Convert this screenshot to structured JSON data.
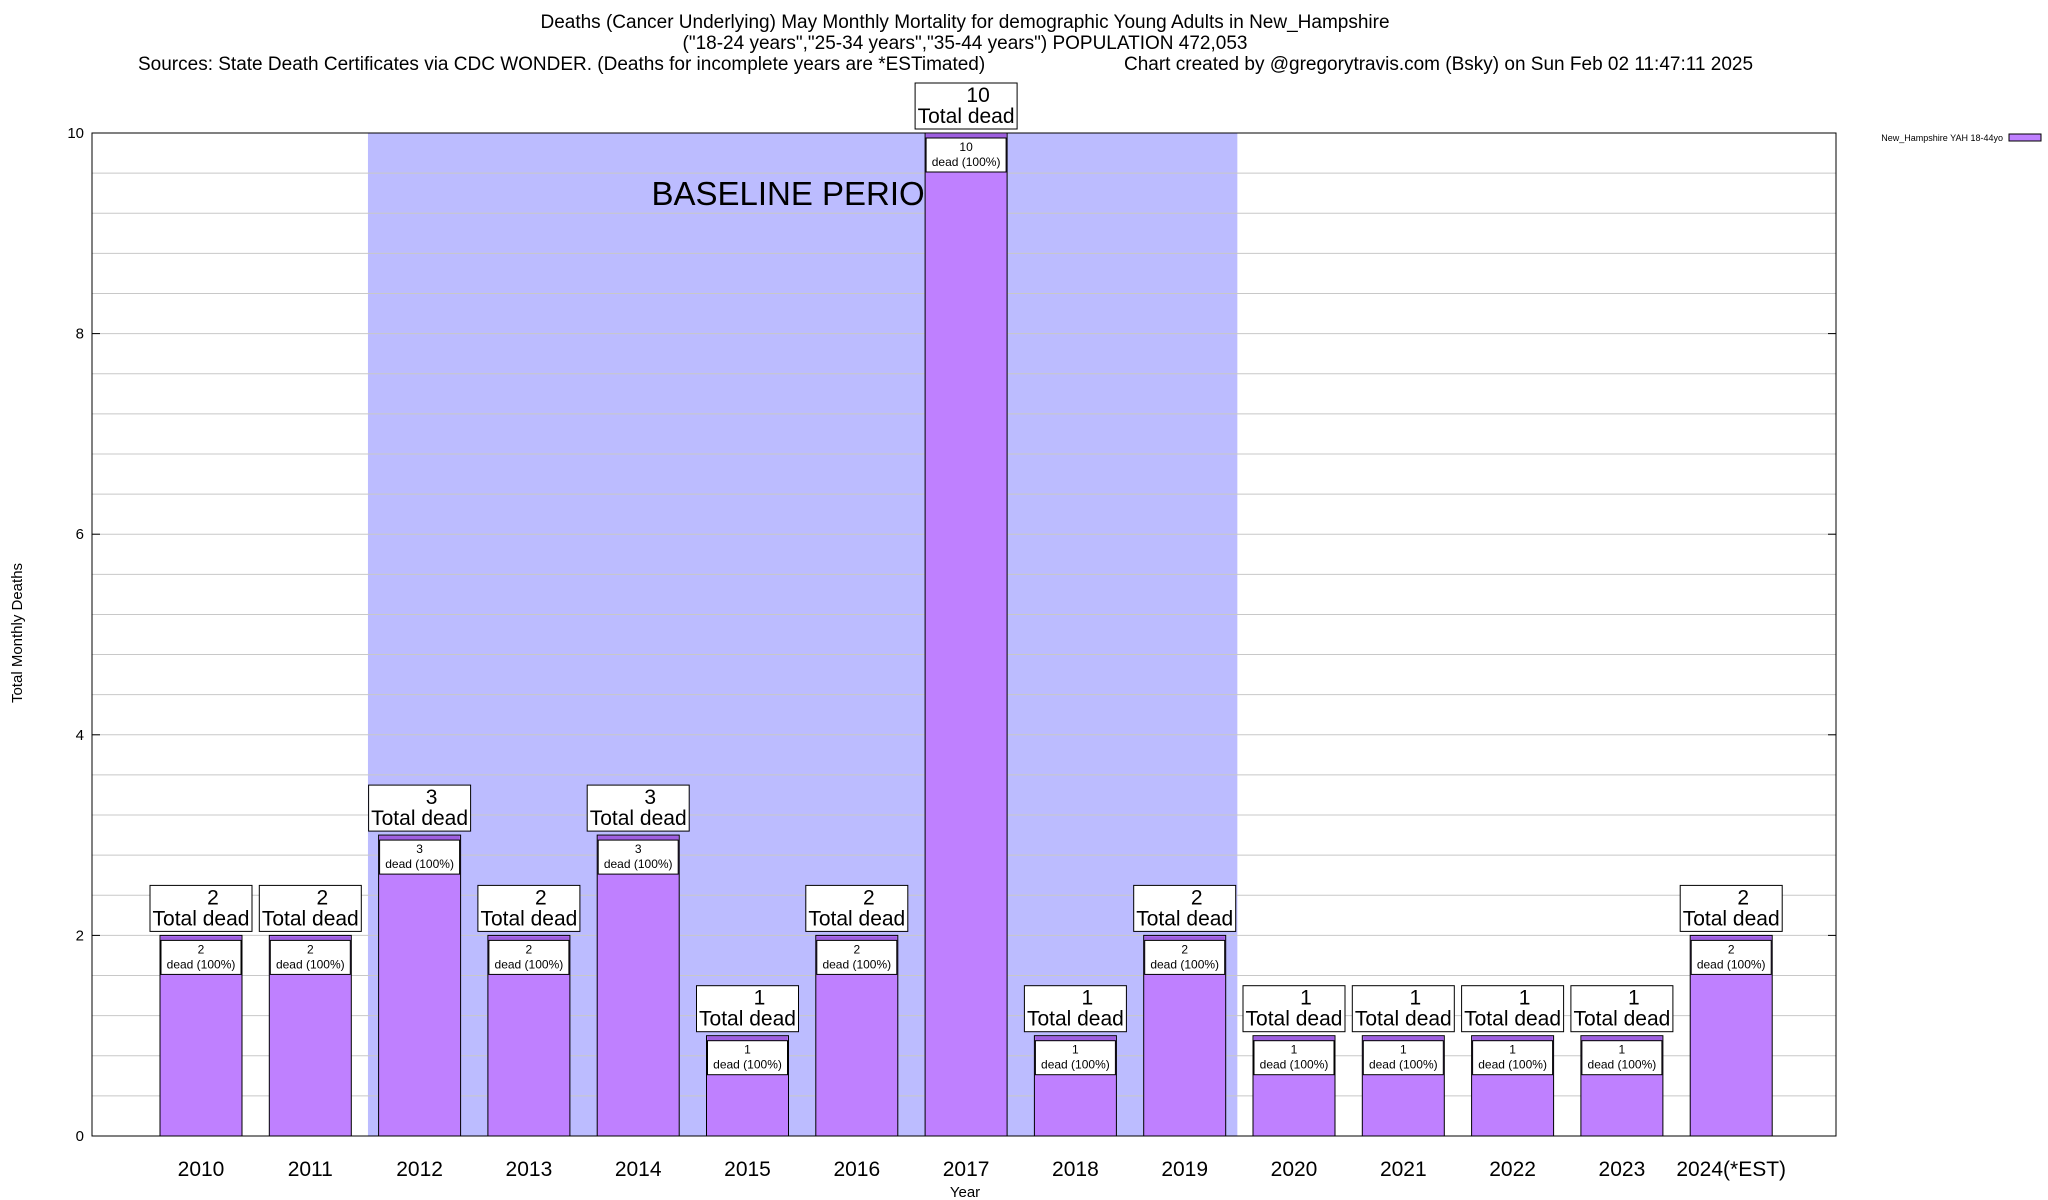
{
  "header": {
    "title_line1": "Deaths (Cancer Underlying) May Monthly Mortality for demographic Young Adults in New_Hampshire",
    "title_line2": "(\"18-24 years\",\"25-34 years\",\"35-44 years\") POPULATION 472,053",
    "sources": "Sources: State Death Certificates via CDC WONDER. (Deaths for incomplete years are *ESTimated)",
    "credit": "Chart created by @gregorytravis.com (Bsky) on Sun Feb 02 11:47:11 2025"
  },
  "chart_data": {
    "type": "bar",
    "categories": [
      "2010",
      "2011",
      "2012",
      "2013",
      "2014",
      "2015",
      "2016",
      "2017",
      "2018",
      "2019",
      "2020",
      "2021",
      "2022",
      "2023",
      "2024(*EST)"
    ],
    "series": [
      {
        "name": "New_Hampshire YAH 18-44yo",
        "values": [
          2,
          2,
          3,
          2,
          3,
          1,
          2,
          10,
          1,
          2,
          1,
          1,
          1,
          1,
          2
        ]
      }
    ],
    "bar_top_label": "Total dead",
    "bar_inner_label": "dead (100%)",
    "xlabel": "Year",
    "ylabel": "Total Monthly Deaths",
    "ylim": [
      0,
      10
    ],
    "yticks": [
      0,
      2,
      4,
      6,
      8,
      10
    ],
    "baseline": {
      "label": "BASELINE PERIOD",
      "start": "2012",
      "end": "2019"
    },
    "grid": true,
    "legend_position": "top-right",
    "colors": {
      "bar": "#bf80ff",
      "bar_top": "#9e5fe0",
      "baseline": "#bcbcff",
      "grid": "#c8c8c8"
    }
  }
}
